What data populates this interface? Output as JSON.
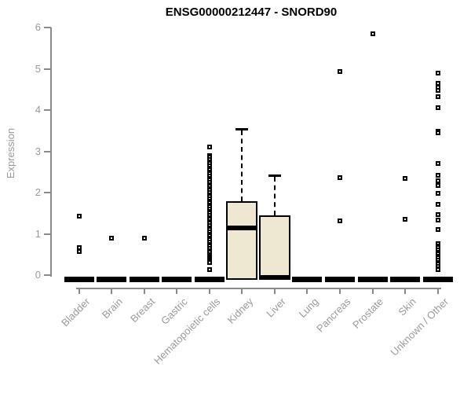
{
  "chart_data": {
    "type": "boxplot",
    "title": "ENSG00000212447 - SNORD90",
    "ylabel": "Expression",
    "xlabel": "",
    "ylim": [
      0,
      6
    ],
    "yticks": [
      0,
      1,
      2,
      3,
      4,
      5,
      6
    ],
    "grid": false,
    "legend": "none",
    "categories": [
      "Bladder",
      "Brain",
      "Breast",
      "Gastric",
      "Hematopoietic cells",
      "Kidney",
      "Liver",
      "Lung",
      "Pancreas",
      "Prostate",
      "Skin",
      "Unknown / Other"
    ],
    "boxes": [
      {
        "category": "Bladder",
        "collapsed": true,
        "q1": 0,
        "median": 0,
        "q3": 0,
        "whisker_low": 0,
        "whisker_high": 0,
        "outliers": [
          1.42,
          0.66,
          0.58
        ]
      },
      {
        "category": "Brain",
        "collapsed": true,
        "q1": 0,
        "median": 0,
        "q3": 0,
        "whisker_low": 0,
        "whisker_high": 0,
        "outliers": [
          0.9
        ]
      },
      {
        "category": "Breast",
        "collapsed": true,
        "q1": 0,
        "median": 0,
        "q3": 0,
        "whisker_low": 0,
        "whisker_high": 0,
        "outliers": [
          0.9
        ]
      },
      {
        "category": "Gastric",
        "collapsed": true,
        "q1": 0,
        "median": 0,
        "q3": 0,
        "whisker_low": 0,
        "whisker_high": 0,
        "outliers": []
      },
      {
        "category": "Hematopoietic cells",
        "collapsed": true,
        "q1": 0,
        "median": 0,
        "q3": 0,
        "whisker_low": 0,
        "whisker_high": 0,
        "outliers": [
          3.1,
          2.9,
          2.85,
          2.8,
          2.75,
          2.7,
          2.65,
          2.6,
          2.55,
          2.5,
          2.45,
          2.4,
          2.35,
          2.3,
          2.25,
          2.2,
          2.15,
          2.1,
          2.05,
          2.0,
          1.95,
          1.9,
          1.85,
          1.8,
          1.75,
          1.7,
          1.65,
          1.6,
          1.55,
          1.5,
          1.45,
          1.4,
          1.35,
          1.3,
          1.25,
          1.2,
          1.15,
          1.1,
          1.05,
          1.0,
          0.95,
          0.9,
          0.85,
          0.8,
          0.75,
          0.7,
          0.65,
          0.6,
          0.55,
          0.5,
          0.46,
          0.42,
          0.38,
          0.34,
          0.3,
          0.13
        ]
      },
      {
        "category": "Kidney",
        "collapsed": false,
        "q1": 0,
        "median": 1.15,
        "q3": 1.8,
        "whisker_low": 0,
        "whisker_high": 3.55,
        "outliers": []
      },
      {
        "category": "Liver",
        "collapsed": false,
        "q1": 0,
        "median": 0,
        "q3": 1.45,
        "whisker_low": 0,
        "whisker_high": 2.42,
        "outliers": []
      },
      {
        "category": "Lung",
        "collapsed": true,
        "q1": 0,
        "median": 0,
        "q3": 0,
        "whisker_low": 0,
        "whisker_high": 0,
        "outliers": []
      },
      {
        "category": "Pancreas",
        "collapsed": true,
        "q1": 0,
        "median": 0,
        "q3": 0,
        "whisker_low": 0,
        "whisker_high": 0,
        "outliers": [
          4.93,
          2.36,
          1.31
        ]
      },
      {
        "category": "Prostate",
        "collapsed": true,
        "q1": 0,
        "median": 0,
        "q3": 0,
        "whisker_low": 0,
        "whisker_high": 0,
        "outliers": [
          5.85
        ]
      },
      {
        "category": "Skin",
        "collapsed": true,
        "q1": 0,
        "median": 0,
        "q3": 0,
        "whisker_low": 0,
        "whisker_high": 0,
        "outliers": [
          2.35,
          1.36
        ]
      },
      {
        "category": "Unknown / Other",
        "collapsed": true,
        "q1": 0,
        "median": 0,
        "q3": 0,
        "whisker_low": 0,
        "whisker_high": 0,
        "outliers": [
          4.9,
          4.65,
          4.55,
          4.48,
          4.33,
          4.06,
          3.48,
          3.44,
          2.7,
          2.42,
          2.28,
          2.17,
          1.99,
          1.71,
          1.47,
          1.33,
          1.11,
          0.76,
          0.71,
          0.66,
          0.61,
          0.56,
          0.51,
          0.46,
          0.41,
          0.36,
          0.31,
          0.26,
          0.21,
          0.16,
          0.13
        ]
      }
    ],
    "colors": {
      "box_fill": "#eee8d2",
      "box_line": "#000000",
      "outlier": "#000000",
      "axis": "#8a8a8a",
      "tick_label": "#9a9a9a",
      "title": "#000000",
      "background": "#ffffff"
    }
  }
}
